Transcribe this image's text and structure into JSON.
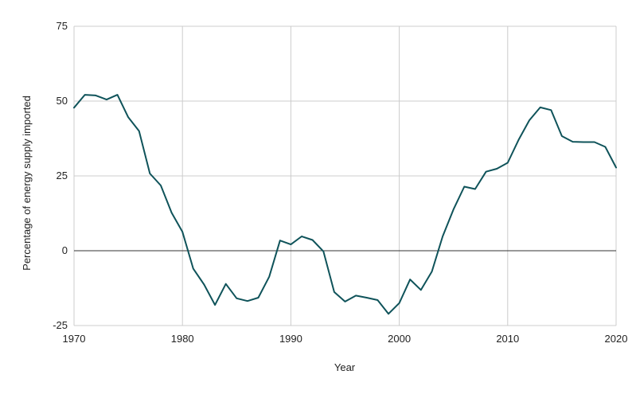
{
  "chart_data": {
    "type": "line",
    "title": "",
    "xlabel": "Year",
    "ylabel": "Percentage of energy supply imported",
    "xlim": [
      1970,
      2020
    ],
    "ylim": [
      -25,
      75
    ],
    "x_ticks": [
      1970,
      1980,
      1990,
      2000,
      2010,
      2020
    ],
    "y_ticks": [
      -25,
      0,
      25,
      50,
      75
    ],
    "grid": true,
    "legend": "none",
    "colors": {
      "line": "#0f535a",
      "grid": "#cccccc",
      "zero_line": "#333333",
      "text": "#222222"
    },
    "series": [
      {
        "x": [
          1970,
          1971,
          1972,
          1973,
          1974,
          1975,
          1976,
          1977,
          1978,
          1979,
          1980,
          1981,
          1982,
          1983,
          1984,
          1985,
          1986,
          1987,
          1988,
          1989,
          1990,
          1991,
          1992,
          1993,
          1994,
          1995,
          1996,
          1997,
          1998,
          1999,
          2000,
          2001,
          2002,
          2003,
          2004,
          2005,
          2006,
          2007,
          2008,
          2009,
          2010,
          2011,
          2012,
          2013,
          2014,
          2015,
          2016,
          2017,
          2018,
          2019,
          2020
        ],
        "values": [
          47.8,
          52.1,
          51.9,
          50.5,
          52.1,
          44.6,
          40.0,
          25.8,
          21.8,
          12.7,
          6.3,
          -6.0,
          -11.3,
          -18.1,
          -11.1,
          -15.9,
          -16.8,
          -15.7,
          -8.7,
          3.4,
          2.1,
          4.8,
          3.6,
          -0.2,
          -13.8,
          -17.0,
          -15.0,
          -15.7,
          -16.5,
          -21.1,
          -17.5,
          -9.6,
          -13.1,
          -7.0,
          4.8,
          13.8,
          21.4,
          20.6,
          26.4,
          27.4,
          29.4,
          37.0,
          43.6,
          47.9,
          47.0,
          38.3,
          36.4,
          36.3,
          36.3,
          34.7,
          27.8
        ]
      }
    ]
  }
}
